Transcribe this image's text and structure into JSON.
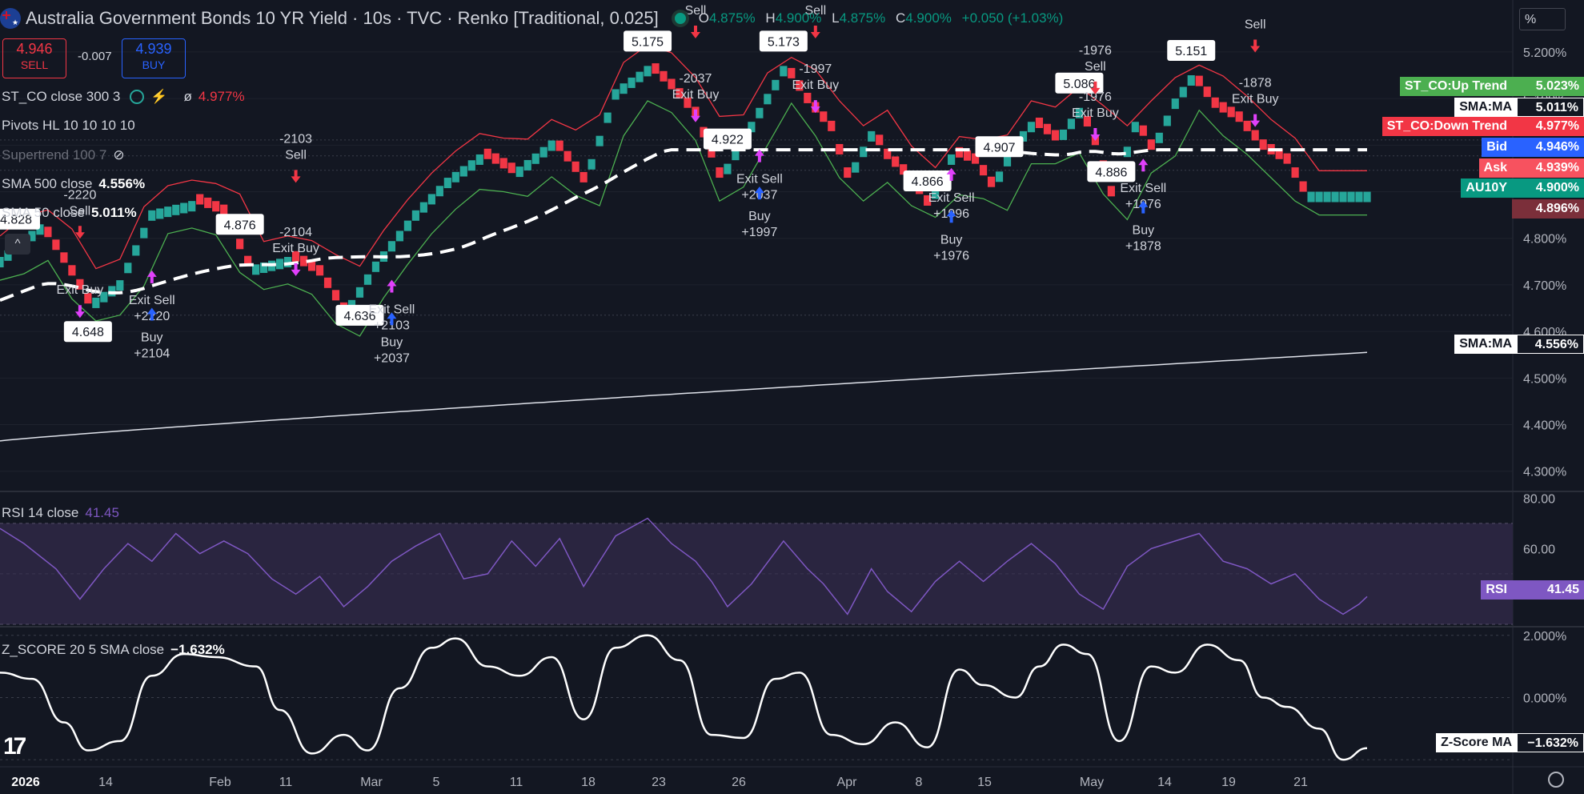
{
  "header": {
    "title": "Australia Government Bonds 10 YR Yield · 10s · TVC · Renko [Traditional, 0.025]",
    "o_label": "O",
    "o_value": "4.875%",
    "h_label": "H",
    "h_value": "4.900%",
    "l_label": "L",
    "l_value": "4.875%",
    "c_label": "C",
    "c_value": "4.900%",
    "change": "+0.050 (+1.03%)"
  },
  "quote": {
    "sell_price": "4.946",
    "sell_label": "SELL",
    "spread": "-0.007",
    "buy_price": "4.939",
    "buy_label": "BUY"
  },
  "legends": {
    "st_co": "ST_CO close 300 3",
    "st_co_value": "4.977%",
    "pivots": "Pivots HL 10 10 10 10",
    "supertrend": "Supertrend 100 7",
    "sma500": "SMA 500 close",
    "sma500_value": "4.556%",
    "sma50": "SMA 50 close",
    "sma50_value": "5.011%",
    "rsi": "RSI 14 close",
    "rsi_value": "41.45",
    "zscore": "Z_SCORE 20 5 SMA close",
    "zscore_value": "−1.632%"
  },
  "axis_unit": "%",
  "right_labels": [
    {
      "name": "ST_CO:Up Trend",
      "value": "5.023%",
      "bg": "#4caf50",
      "fg": "#ffffff"
    },
    {
      "name": "SMA:MA",
      "value": "5.011%",
      "bg": "#ffffff",
      "fg": "#131722"
    },
    {
      "name": "ST_CO:Down Trend",
      "value": "4.977%",
      "bg": "#f23645",
      "fg": "#ffffff"
    },
    {
      "name": "Bid",
      "value": "4.946%",
      "bg": "#2962ff",
      "fg": "#ffffff"
    },
    {
      "name": "Ask",
      "value": "4.939%",
      "bg": "#f7525f",
      "fg": "#ffffff"
    },
    {
      "name": "AU10Y",
      "value": "4.900%",
      "bg": "#089981",
      "fg": "#ffffff"
    },
    {
      "name": "",
      "value": "4.896%",
      "bg": "#7b2f3a",
      "fg": "#ffffff"
    },
    {
      "name": "SMA:MA",
      "value": "4.556%",
      "bg": "#ffffff",
      "fg": "#131722"
    },
    {
      "name": "RSI",
      "value": "41.45",
      "bg": "#7e57c2",
      "fg": "#ffffff"
    },
    {
      "name": "Z-Score MA",
      "value": "−1.632%",
      "bg": "#ffffff",
      "fg": "#131722"
    }
  ],
  "colors": {
    "up": "#26a69a",
    "down": "#f23645",
    "background": "#131722",
    "rsi_line": "#7e57c2",
    "rsi_band": "#2a2540"
  },
  "chart_data": [
    {
      "type": "candlestick",
      "pane": "price",
      "series_names": [
        "ST_CO",
        "SMA 500",
        "SMA 50",
        "Pivots HL"
      ],
      "y_ticks": [
        "5.200%",
        "5.100%",
        "5.000%",
        "4.900%",
        "4.800%",
        "4.700%",
        "4.600%",
        "4.500%",
        "4.400%",
        "4.300%"
      ],
      "ylim": [
        4.26,
        5.26
      ],
      "x_ticks": [
        "2026",
        "14",
        "Feb",
        "11",
        "Mar",
        "5",
        "11",
        "18",
        "23",
        "26",
        "Apr",
        "8",
        "15",
        "May",
        "14",
        "19",
        "21"
      ],
      "renko_path": [
        [
          0,
          4.76
        ],
        [
          5,
          4.83
        ],
        [
          9,
          4.72
        ],
        [
          11,
          4.66
        ],
        [
          15,
          4.71
        ],
        [
          19,
          4.86
        ],
        [
          24,
          4.88
        ],
        [
          28,
          4.85
        ],
        [
          31,
          4.74
        ],
        [
          36,
          4.76
        ],
        [
          40,
          4.72
        ],
        [
          43,
          4.64
        ],
        [
          47,
          4.75
        ],
        [
          52,
          4.86
        ],
        [
          56,
          4.93
        ],
        [
          60,
          4.98
        ],
        [
          64,
          4.94
        ],
        [
          69,
          5.01
        ],
        [
          73,
          4.92
        ],
        [
          77,
          5.12
        ],
        [
          81,
          5.17
        ],
        [
          84,
          5.12
        ],
        [
          87,
          5.06
        ],
        [
          90,
          4.93
        ],
        [
          94,
          5.05
        ],
        [
          98,
          5.17
        ],
        [
          101,
          5.09
        ],
        [
          104,
          5.03
        ],
        [
          106,
          4.93
        ],
        [
          109,
          5.03
        ],
        [
          111,
          4.97
        ],
        [
          114,
          4.92
        ],
        [
          116,
          4.87
        ],
        [
          119,
          4.98
        ],
        [
          122,
          4.96
        ],
        [
          124,
          4.91
        ],
        [
          127,
          5.01
        ],
        [
          129,
          5.05
        ],
        [
          132,
          5.01
        ],
        [
          135,
          5.08
        ],
        [
          137,
          5.0
        ],
        [
          139,
          4.89
        ],
        [
          142,
          5.05
        ],
        [
          144,
          4.99
        ],
        [
          147,
          5.1
        ],
        [
          149,
          5.15
        ],
        [
          152,
          5.08
        ],
        [
          155,
          5.05
        ],
        [
          158,
          4.99
        ],
        [
          161,
          4.96
        ],
        [
          163,
          4.9
        ]
      ],
      "pivot_labels": [
        {
          "index": 2,
          "value": "4.828"
        },
        {
          "index": 11,
          "value": "4.648"
        },
        {
          "index": 30,
          "value": "4.876"
        },
        {
          "index": 45,
          "value": "4.636"
        },
        {
          "index": 81,
          "value": "5.175"
        },
        {
          "index": 91,
          "value": "4.922"
        },
        {
          "index": 98,
          "value": "5.173"
        },
        {
          "index": 116,
          "value": "4.866"
        },
        {
          "index": 125,
          "value": "4.907"
        },
        {
          "index": 135,
          "value": "5.086"
        },
        {
          "index": 139,
          "value": "4.886"
        },
        {
          "index": 149,
          "value": "5.151"
        }
      ],
      "signals": [
        {
          "index": 10,
          "price": 4.66,
          "type": "Exit Buy",
          "qty": ""
        },
        {
          "index": 10,
          "price": 4.83,
          "type": "Sell",
          "qty": "-2220"
        },
        {
          "index": 19,
          "price": 4.7,
          "type": "Exit Sell",
          "qty": "+2220"
        },
        {
          "index": 19,
          "price": 4.62,
          "type": "Buy",
          "qty": "+2104"
        },
        {
          "index": 37,
          "price": 4.75,
          "type": "Exit Buy",
          "qty": "-2104"
        },
        {
          "index": 37,
          "price": 4.95,
          "type": "Sell",
          "qty": "-2103"
        },
        {
          "index": 49,
          "price": 4.68,
          "type": "Exit Sell",
          "qty": "+2103"
        },
        {
          "index": 49,
          "price": 4.61,
          "type": "Buy",
          "qty": "+2037"
        },
        {
          "index": 87,
          "price": 5.08,
          "type": "Exit Buy",
          "qty": "-2037"
        },
        {
          "index": 87,
          "price": 5.26,
          "type": "Sell",
          "qty": ""
        },
        {
          "index": 95,
          "price": 4.96,
          "type": "Exit Sell",
          "qty": "+2037"
        },
        {
          "index": 95,
          "price": 4.88,
          "type": "Buy",
          "qty": "+1997"
        },
        {
          "index": 102,
          "price": 5.1,
          "type": "Exit Buy",
          "qty": "-1997"
        },
        {
          "index": 102,
          "price": 5.26,
          "type": "Sell",
          "qty": ""
        },
        {
          "index": 119,
          "price": 4.92,
          "type": "Exit Sell",
          "qty": "+1996"
        },
        {
          "index": 119,
          "price": 4.83,
          "type": "Buy",
          "qty": "+1976"
        },
        {
          "index": 137,
          "price": 5.04,
          "type": "Exit Buy",
          "qty": "-1976"
        },
        {
          "index": 137,
          "price": 5.14,
          "type": "Sell",
          "qty": "-1976"
        },
        {
          "index": 143,
          "price": 4.94,
          "type": "Exit Sell",
          "qty": "+1976"
        },
        {
          "index": 143,
          "price": 4.85,
          "type": "Buy",
          "qty": "+1878"
        },
        {
          "index": 157,
          "price": 5.07,
          "type": "Exit Buy",
          "qty": "-1878"
        },
        {
          "index": 157,
          "price": 5.23,
          "type": "Sell",
          "qty": ""
        }
      ]
    },
    {
      "type": "line",
      "pane": "rsi",
      "series_names": [
        "RSI"
      ],
      "y_ticks": [
        "80.00",
        "60.00"
      ],
      "ylim": [
        30,
        82
      ],
      "band": [
        30,
        70
      ],
      "path": [
        [
          0,
          68
        ],
        [
          3,
          62
        ],
        [
          7,
          52
        ],
        [
          10,
          40
        ],
        [
          13,
          52
        ],
        [
          16,
          62
        ],
        [
          19,
          55
        ],
        [
          22,
          66
        ],
        [
          25,
          58
        ],
        [
          28,
          63
        ],
        [
          31,
          58
        ],
        [
          34,
          48
        ],
        [
          37,
          42
        ],
        [
          40,
          49
        ],
        [
          43,
          37
        ],
        [
          46,
          45
        ],
        [
          49,
          55
        ],
        [
          52,
          61
        ],
        [
          55,
          66
        ],
        [
          58,
          48
        ],
        [
          61,
          50
        ],
        [
          64,
          63
        ],
        [
          67,
          53
        ],
        [
          70,
          64
        ],
        [
          73,
          45
        ],
        [
          77,
          65
        ],
        [
          81,
          72
        ],
        [
          84,
          62
        ],
        [
          87,
          55
        ],
        [
          89,
          47
        ],
        [
          91,
          37
        ],
        [
          94,
          46
        ],
        [
          98,
          63
        ],
        [
          101,
          52
        ],
        [
          103,
          46
        ],
        [
          106,
          34
        ],
        [
          109,
          52
        ],
        [
          111,
          43
        ],
        [
          114,
          35
        ],
        [
          117,
          47
        ],
        [
          120,
          55
        ],
        [
          123,
          47
        ],
        [
          126,
          55
        ],
        [
          129,
          62
        ],
        [
          132,
          54
        ],
        [
          135,
          42
        ],
        [
          138,
          36
        ],
        [
          141,
          53
        ],
        [
          144,
          60
        ],
        [
          147,
          63
        ],
        [
          150,
          66
        ],
        [
          153,
          55
        ],
        [
          156,
          52
        ],
        [
          159,
          46
        ],
        [
          162,
          50
        ],
        [
          165,
          40
        ],
        [
          168,
          34
        ],
        [
          170,
          38
        ],
        [
          171,
          41
        ]
      ]
    },
    {
      "type": "line",
      "pane": "zscore",
      "series_names": [
        "Z-Score MA"
      ],
      "y_ticks": [
        "2.000%",
        "0.000%"
      ],
      "ylim": [
        -2.15,
        2.2
      ],
      "path": [
        [
          0,
          0.8
        ],
        [
          4,
          0.6
        ],
        [
          8,
          -0.8
        ],
        [
          11,
          -1.7
        ],
        [
          15,
          -1.4
        ],
        [
          19,
          0.7
        ],
        [
          23,
          1.4
        ],
        [
          27,
          1.3
        ],
        [
          32,
          1.0
        ],
        [
          35,
          -0.4
        ],
        [
          39,
          -1.8
        ],
        [
          43,
          -1.2
        ],
        [
          46,
          -1.7
        ],
        [
          50,
          0.3
        ],
        [
          54,
          1.6
        ],
        [
          57,
          1.9
        ],
        [
          61,
          1.0
        ],
        [
          65,
          0.7
        ],
        [
          69,
          1.3
        ],
        [
          73,
          -0.7
        ],
        [
          77,
          1.6
        ],
        [
          81,
          2.0
        ],
        [
          85,
          1.2
        ],
        [
          89,
          -1.2
        ],
        [
          93,
          -1.3
        ],
        [
          97,
          0.6
        ],
        [
          100,
          0.8
        ],
        [
          104,
          -1.2
        ],
        [
          108,
          -1.5
        ],
        [
          112,
          -0.8
        ],
        [
          116,
          -1.6
        ],
        [
          120,
          0.9
        ],
        [
          123,
          0.4
        ],
        [
          127,
          0.0
        ],
        [
          130,
          1.0
        ],
        [
          133,
          1.7
        ],
        [
          136,
          1.4
        ],
        [
          140,
          -1.4
        ],
        [
          144,
          1.0
        ],
        [
          147,
          0.8
        ],
        [
          151,
          1.7
        ],
        [
          155,
          1.2
        ],
        [
          158,
          0.0
        ],
        [
          161,
          -0.3
        ],
        [
          165,
          -1.0
        ],
        [
          168,
          -2.0
        ],
        [
          171,
          -1.63
        ]
      ]
    }
  ]
}
